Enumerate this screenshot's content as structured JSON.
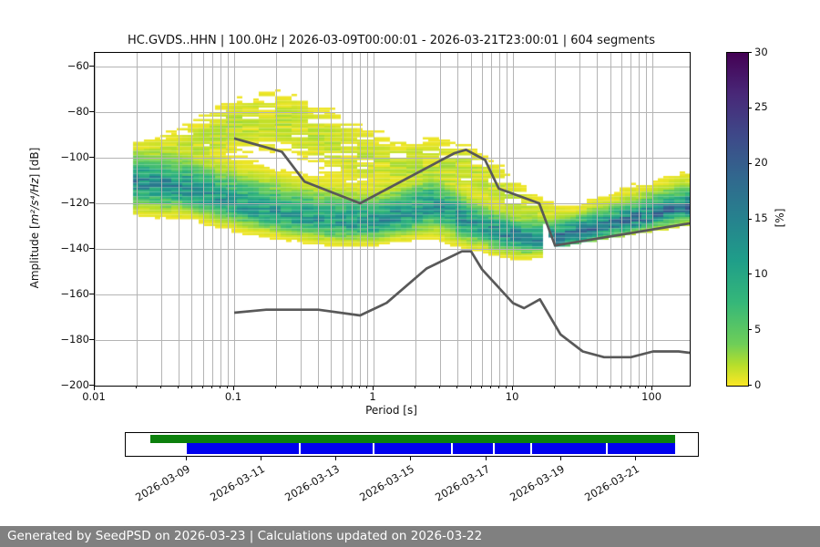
{
  "chart_data": {
    "type": "heatmap",
    "title": "HC.GVDS..HHN | 100.0Hz | 2026-03-09T00:00:01 - 2026-03-21T23:00:01 | 604 segments",
    "xlabel": "Period [s]",
    "ylabel": "Amplitude [m²/s⁴/Hz] [dB]",
    "ylabel_parts": {
      "prefix": "Amplitude [",
      "math": "m²/s⁴/Hz",
      "suffix": "] [dB]"
    },
    "xscale": "log",
    "xlim": [
      0.01,
      185
    ],
    "ylim": [
      -200,
      -54
    ],
    "grid": true,
    "grid_color": "#b4b4b4",
    "x_ticks": [
      {
        "value": 0.01,
        "label": "0.01"
      },
      {
        "value": 0.1,
        "label": "0.1"
      },
      {
        "value": 1,
        "label": "1"
      },
      {
        "value": 10,
        "label": "10"
      },
      {
        "value": 100,
        "label": "100"
      }
    ],
    "y_ticks": [
      {
        "value": -60,
        "label": "−60"
      },
      {
        "value": -80,
        "label": "−80"
      },
      {
        "value": -100,
        "label": "−100"
      },
      {
        "value": -120,
        "label": "−120"
      },
      {
        "value": -140,
        "label": "−140"
      },
      {
        "value": -160,
        "label": "−160"
      },
      {
        "value": -180,
        "label": "−180"
      },
      {
        "value": -200,
        "label": "−200"
      }
    ],
    "colorbar": {
      "label": "[%]",
      "min": 0,
      "max": 30,
      "ticks": [
        {
          "value": 0,
          "label": "0"
        },
        {
          "value": 5,
          "label": "5"
        },
        {
          "value": 10,
          "label": "10"
        },
        {
          "value": 15,
          "label": "15"
        },
        {
          "value": 20,
          "label": "20"
        },
        {
          "value": 25,
          "label": "25"
        },
        {
          "value": 30,
          "label": "30"
        }
      ],
      "colormap": "viridis reversed (0% = yellow, 30% = dark purple)",
      "viridis_stops": [
        [
          0.0,
          "#440154"
        ],
        [
          0.125,
          "#482878"
        ],
        [
          0.25,
          "#3e4989"
        ],
        [
          0.375,
          "#31688e"
        ],
        [
          0.5,
          "#26828e"
        ],
        [
          0.625,
          "#1f9e89"
        ],
        [
          0.75,
          "#35b779"
        ],
        [
          0.875,
          "#6ece58"
        ],
        [
          0.9375,
          "#b5de2b"
        ],
        [
          1.0,
          "#fde725"
        ]
      ]
    },
    "noise_models": [
      {
        "name": "high-noise-model",
        "color": "#595959",
        "points": [
          [
            0.1,
            -91.5
          ],
          [
            0.22,
            -97.4
          ],
          [
            0.32,
            -110.5
          ],
          [
            0.8,
            -120.0
          ],
          [
            3.8,
            -98.0
          ],
          [
            4.6,
            -96.5
          ],
          [
            6.3,
            -101.0
          ],
          [
            7.9,
            -113.5
          ],
          [
            15.4,
            -120.0
          ],
          [
            20.0,
            -138.5
          ],
          [
            185.0,
            -128.8
          ]
        ]
      },
      {
        "name": "low-noise-model",
        "color": "#595959",
        "points": [
          [
            0.1,
            -168.0
          ],
          [
            0.17,
            -166.7
          ],
          [
            0.4,
            -166.7
          ],
          [
            0.8,
            -169.2
          ],
          [
            1.24,
            -163.7
          ],
          [
            2.4,
            -148.6
          ],
          [
            4.3,
            -141.1
          ],
          [
            5.0,
            -141.1
          ],
          [
            6.0,
            -149.0
          ],
          [
            10.0,
            -163.8
          ],
          [
            12.0,
            -166.0
          ],
          [
            15.6,
            -162.1
          ],
          [
            21.9,
            -177.5
          ],
          [
            31.6,
            -185.0
          ],
          [
            45.0,
            -187.5
          ],
          [
            70.0,
            -187.5
          ],
          [
            101.0,
            -185.0
          ],
          [
            154.0,
            -185.0
          ],
          [
            185.0,
            -185.6
          ]
        ]
      }
    ],
    "density": {
      "units": "percent probability per 1 dB bin",
      "threshold_percent": 0.35,
      "data_min_period_s": 0.0185,
      "clip_below_high_model_after_s": 17,
      "columns_main": [
        [
          0.0185,
          -110.5,
          5.5,
          5.5,
          16.0
        ],
        [
          0.028,
          -111.5,
          6.0,
          5.5,
          15.0
        ],
        [
          0.05,
          -114.0,
          6.5,
          5.0,
          14.0
        ],
        [
          0.08,
          -118.0,
          7.0,
          5.0,
          12.5
        ],
        [
          0.13,
          -122.0,
          7.5,
          4.5,
          12.0
        ],
        [
          0.22,
          -125.5,
          7.5,
          4.0,
          12.0
        ],
        [
          0.4,
          -127.5,
          7.0,
          4.0,
          12.5
        ],
        [
          0.7,
          -128.5,
          6.5,
          4.0,
          13.0
        ],
        [
          1.1,
          -128.0,
          6.0,
          4.0,
          13.5
        ],
        [
          1.8,
          -124.5,
          6.0,
          4.5,
          13.5
        ],
        [
          2.6,
          -121.0,
          6.0,
          5.5,
          13.0
        ],
        [
          3.6,
          -124.0,
          5.5,
          5.5,
          13.0
        ],
        [
          5.0,
          -128.5,
          5.0,
          4.5,
          14.0
        ],
        [
          7.5,
          -132.5,
          4.5,
          4.0,
          15.0
        ],
        [
          12.0,
          -135.5,
          4.2,
          3.5,
          16.0
        ],
        [
          20.0,
          -135.5,
          4.0,
          3.0,
          17.0
        ],
        [
          30.0,
          -133.0,
          4.0,
          3.0,
          17.0
        ],
        [
          50.0,
          -129.5,
          4.2,
          3.0,
          17.0
        ],
        [
          80.0,
          -126.5,
          4.5,
          3.2,
          17.0
        ],
        [
          120.0,
          -124.0,
          4.5,
          3.2,
          17.5
        ],
        [
          185.0,
          -121.5,
          4.5,
          3.5,
          18.0
        ]
      ],
      "columns_upper": [
        [
          0.0185,
          -99.0,
          4.0,
          4.0,
          0.9
        ],
        [
          0.04,
          -96.0,
          5.0,
          5.0,
          1.1
        ],
        [
          0.08,
          -89.0,
          7.0,
          7.0,
          1.5
        ],
        [
          0.15,
          -83.0,
          7.0,
          7.0,
          1.5
        ],
        [
          0.25,
          -85.0,
          7.5,
          7.5,
          1.4
        ],
        [
          0.45,
          -92.0,
          8.0,
          8.0,
          1.3
        ],
        [
          0.8,
          -100.0,
          8.0,
          8.0,
          1.2
        ],
        [
          1.5,
          -104.0,
          7.0,
          7.0,
          1.3
        ],
        [
          3.0,
          -103.0,
          6.5,
          6.5,
          1.5
        ],
        [
          5.0,
          -106.0,
          6.0,
          6.0,
          1.4
        ],
        [
          8.0,
          -114.0,
          6.0,
          6.0,
          1.2
        ],
        [
          14.0,
          -124.0,
          5.0,
          5.0,
          1.0
        ],
        [
          25.0,
          -128.0,
          4.0,
          4.0,
          0.6
        ],
        [
          60.0,
          -119.0,
          4.0,
          4.0,
          0.6
        ],
        [
          120.0,
          -115.0,
          4.0,
          4.0,
          0.8
        ],
        [
          185.0,
          -112.0,
          4.0,
          4.0,
          0.9
        ]
      ]
    }
  },
  "timeline": {
    "tick_labels": [
      "2026-03-09",
      "2026-03-11",
      "2026-03-13",
      "2026-03-15",
      "2026-03-17",
      "2026-03-19",
      "2026-03-21"
    ],
    "tick_positions_pct": [
      10.67,
      23.73,
      36.83,
      49.92,
      63.01,
      76.08,
      89.17
    ],
    "bars": [
      {
        "name": "availability-bar",
        "color": "#0c800c",
        "start_pct": 4.3,
        "end_pct": 96.0,
        "top": 2,
        "height": 9
      },
      {
        "name": "processed-bar",
        "color": "#0000ee",
        "start_pct": 10.67,
        "end_pct": 96.0,
        "top": 11,
        "height": 12
      }
    ],
    "gaps_pct": [
      30.25,
      43.15,
      56.85,
      64.17,
      70.7,
      83.92
    ]
  },
  "footer": {
    "text": "Generated by SeedPSD on 2026-03-23 | Calculations updated on 2026-03-22",
    "background": "#808080"
  }
}
